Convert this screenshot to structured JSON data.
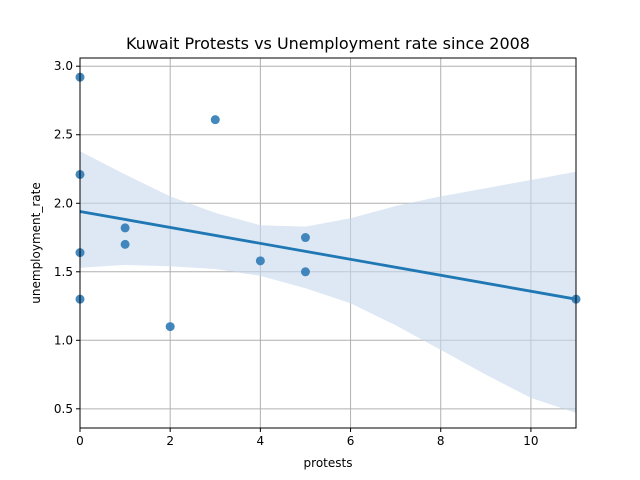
{
  "chart_data": {
    "type": "scatter",
    "title": "Kuwait Protests vs Unemployment rate since 2008",
    "xlabel": "protests",
    "ylabel": "unemployment_rate",
    "xlim": [
      0,
      11
    ],
    "ylim": [
      0.36,
      3.06
    ],
    "xticks": [
      0,
      2,
      4,
      6,
      8,
      10
    ],
    "yticks": [
      0.5,
      1.0,
      1.5,
      2.0,
      2.5,
      3.0
    ],
    "xtick_labels": [
      "0",
      "2",
      "4",
      "6",
      "8",
      "10"
    ],
    "ytick_labels": [
      "0.5",
      "1.0",
      "1.5",
      "2.0",
      "2.5",
      "3.0"
    ],
    "grid": true,
    "points": [
      {
        "x": 0,
        "y": 2.92
      },
      {
        "x": 0,
        "y": 2.21
      },
      {
        "x": 0,
        "y": 1.64
      },
      {
        "x": 0,
        "y": 1.3
      },
      {
        "x": 1,
        "y": 1.82
      },
      {
        "x": 1,
        "y": 1.7
      },
      {
        "x": 2,
        "y": 1.1
      },
      {
        "x": 3,
        "y": 2.61
      },
      {
        "x": 4,
        "y": 1.58
      },
      {
        "x": 5,
        "y": 1.75
      },
      {
        "x": 5,
        "y": 1.5
      },
      {
        "x": 11,
        "y": 1.3
      }
    ],
    "regression": {
      "x": [
        0,
        11
      ],
      "y": [
        1.94,
        1.3
      ]
    },
    "confidence_band": {
      "x": [
        0,
        1,
        2,
        3,
        4,
        5,
        6,
        7,
        8,
        9,
        10,
        11
      ],
      "upper": [
        2.38,
        2.21,
        2.05,
        1.93,
        1.84,
        1.83,
        1.89,
        1.98,
        2.05,
        2.11,
        2.17,
        2.23
      ],
      "lower": [
        1.53,
        1.55,
        1.54,
        1.52,
        1.47,
        1.38,
        1.27,
        1.11,
        0.93,
        0.75,
        0.58,
        0.47
      ]
    },
    "colors": {
      "point": "#2f7bb6",
      "line": "#1f77b4",
      "band": "#c6d9ec"
    }
  }
}
